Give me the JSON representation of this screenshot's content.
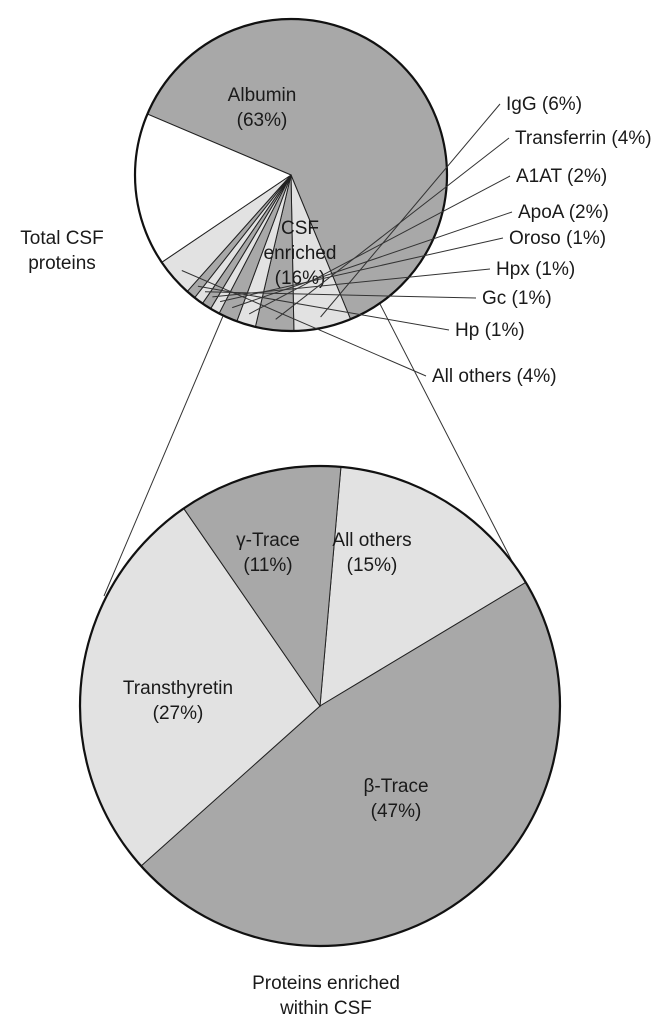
{
  "colors": {
    "dark": "#a8a8a8",
    "light": "#e2e2e2",
    "white": "#ffffff",
    "stroke": "#222222",
    "text": "#1a1a1a"
  },
  "side_label": [
    "Total CSF",
    "proteins"
  ],
  "bottom_caption": [
    "Proteins enriched",
    "within CSF"
  ],
  "chart_data": [
    {
      "type": "pie",
      "slices": [
        {
          "name": "Albumin",
          "pct_label": "(63%)",
          "value": 63,
          "shade": "dark"
        },
        {
          "name": "IgG",
          "pct_label": "(6%)",
          "value": 6,
          "shade": "light"
        },
        {
          "name": "Transferrin",
          "pct_label": "(4%)",
          "value": 4,
          "shade": "dark"
        },
        {
          "name": "A1AT",
          "pct_label": "(2%)",
          "value": 2,
          "shade": "light"
        },
        {
          "name": "ApoA",
          "pct_label": "(2%)",
          "value": 2,
          "shade": "dark"
        },
        {
          "name": "Oroso",
          "pct_label": "(1%)",
          "value": 1,
          "shade": "light"
        },
        {
          "name": "Hpx",
          "pct_label": "(1%)",
          "value": 1,
          "shade": "dark"
        },
        {
          "name": "Gc",
          "pct_label": "(1%)",
          "value": 1,
          "shade": "light"
        },
        {
          "name": "Hp",
          "pct_label": "(1%)",
          "value": 1,
          "shade": "dark"
        },
        {
          "name": "All others",
          "pct_label": "(4%)",
          "value": 4,
          "shade": "light"
        },
        {
          "name": "CSF enriched",
          "pct_label": "(16%)",
          "value": 16,
          "shade": "white"
        }
      ]
    },
    {
      "type": "pie",
      "slices": [
        {
          "name": "All others",
          "pct_label": "(15%)",
          "value": 15,
          "shade": "light"
        },
        {
          "name": "β-Trace",
          "pct_label": "(47%)",
          "value": 47,
          "shade": "dark"
        },
        {
          "name": "Transthyretin",
          "pct_label": "(27%)",
          "value": 27,
          "shade": "light"
        },
        {
          "name": "γ-Trace",
          "pct_label": "(11%)",
          "value": 11,
          "shade": "dark"
        }
      ]
    }
  ]
}
